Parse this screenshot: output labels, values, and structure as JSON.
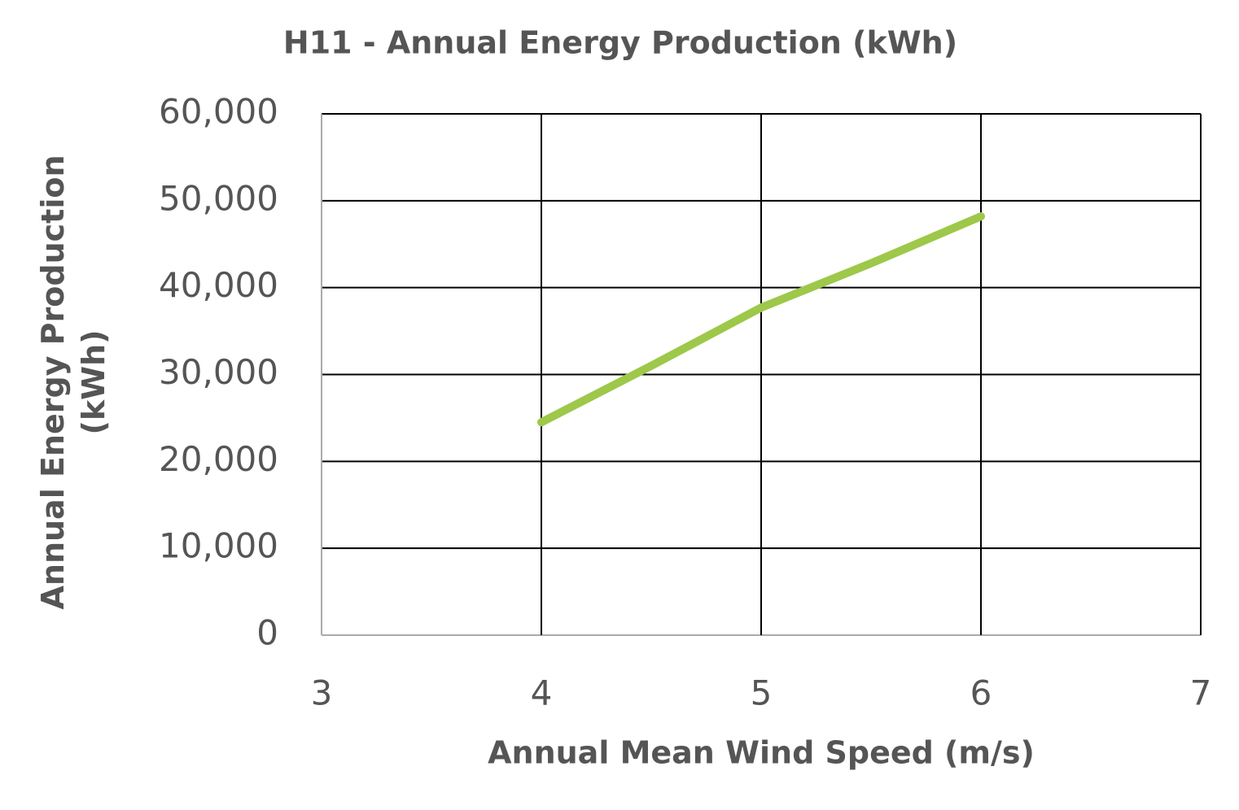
{
  "chart_data": {
    "type": "line",
    "title": "H11 - Annual Energy Production (kWh)",
    "xlabel": "Annual Mean Wind Speed (m/s)",
    "ylabel": "Annual Energy Production (kWh)",
    "x": [
      4,
      4.5,
      5,
      5.5,
      6
    ],
    "series": [
      {
        "name": "H11",
        "color": "#9dc84a",
        "values": [
          24500,
          31000,
          37700,
          42800,
          48200
        ]
      }
    ],
    "xlim": [
      3,
      7
    ],
    "xticks": [
      3,
      4,
      5,
      6,
      7
    ],
    "ylim": [
      0,
      60000
    ],
    "yticks": [
      0,
      {
        "value": 10000,
        "label": "10,000"
      },
      {
        "value": 20000,
        "label": "20,000"
      },
      {
        "value": 30000,
        "label": "30,000"
      },
      {
        "value": 40000,
        "label": "40,000"
      },
      {
        "value": 50000,
        "label": "50,000"
      },
      {
        "value": 60000,
        "label": "60,000"
      }
    ],
    "grid": true
  }
}
